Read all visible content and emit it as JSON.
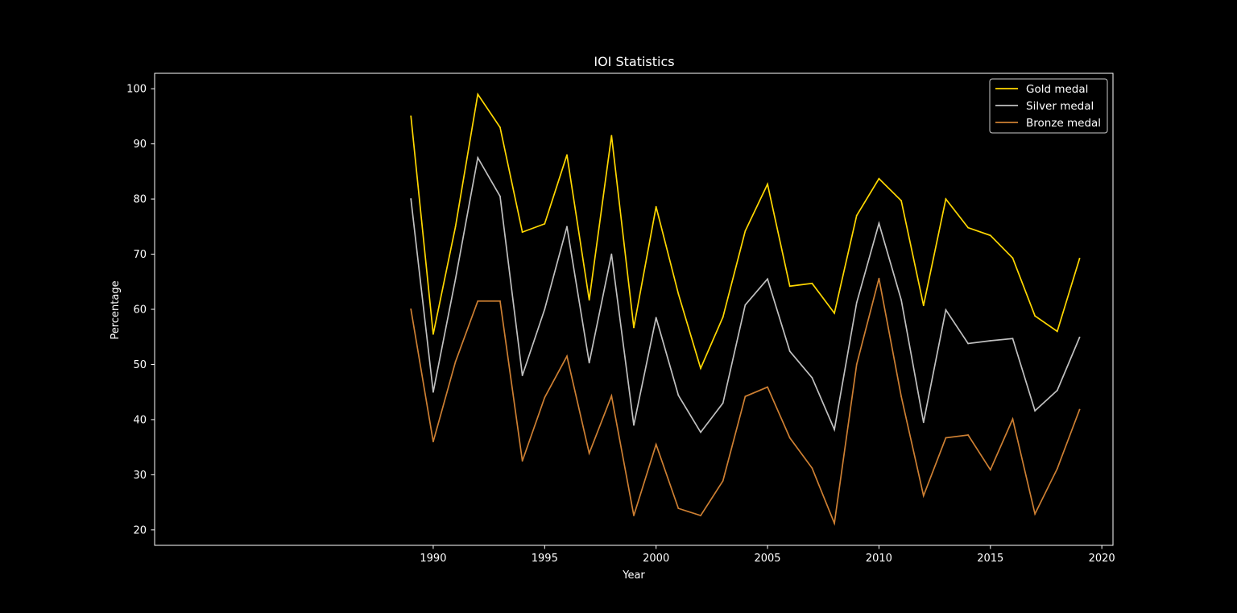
{
  "chart_data": {
    "type": "line",
    "title": "IOI Statistics",
    "xlabel": "Year",
    "ylabel": "Percentage",
    "xlim": [
      1977.5,
      2020.5
    ],
    "ylim": [
      17.2,
      102.8
    ],
    "xticks": [
      1990,
      1995,
      2000,
      2005,
      2010,
      2015,
      2020
    ],
    "yticks": [
      20,
      30,
      40,
      50,
      60,
      70,
      80,
      90,
      100
    ],
    "grid": false,
    "legend_position": "top-right",
    "x": [
      1989,
      1990,
      1991,
      1992,
      1993,
      1994,
      1995,
      1996,
      1997,
      1998,
      1999,
      2000,
      2001,
      2002,
      2003,
      2004,
      2005,
      2006,
      2007,
      2008,
      2009,
      2010,
      2011,
      2012,
      2013,
      2014,
      2015,
      2016,
      2017,
      2018,
      2019
    ],
    "series": [
      {
        "name": "Gold medal",
        "color": "#ffd700",
        "values": [
          95,
          55.5,
          75,
          99,
          93,
          74,
          75.5,
          88,
          61.7,
          91.5,
          56.7,
          78.6,
          62.8,
          49.3,
          58.6,
          74.2,
          82.7,
          64.2,
          64.7,
          59.3,
          77,
          83.7,
          79.7,
          60.7,
          80,
          74.8,
          73.4,
          69.3,
          58.8,
          56,
          69.2
        ]
      },
      {
        "name": "Silver medal",
        "color": "#c0c0c0",
        "values": [
          80,
          45,
          65.5,
          87.5,
          80.5,
          48,
          60,
          75,
          50.3,
          70,
          39,
          58.5,
          44.4,
          37.7,
          43,
          60.8,
          65.5,
          52.4,
          47.6,
          38.2,
          61.2,
          75.6,
          61.7,
          39.5,
          59.9,
          53.8,
          54.3,
          54.7,
          41.6,
          45.3,
          54.9
        ]
      },
      {
        "name": "Bronze medal",
        "color": "#cd7f32",
        "values": [
          60,
          36,
          50.5,
          61.5,
          61.5,
          32.5,
          44,
          51.5,
          33.9,
          44.3,
          22.6,
          35.5,
          23.9,
          22.6,
          28.9,
          44.2,
          45.9,
          36.7,
          31.2,
          21.2,
          50,
          65.6,
          44.2,
          26.2,
          36.7,
          37.2,
          30.9,
          40.1,
          22.9,
          31.1,
          41.8
        ]
      }
    ]
  },
  "colors": {
    "background": "#000000",
    "axes": "#ffffff",
    "text": "#ffffff"
  }
}
